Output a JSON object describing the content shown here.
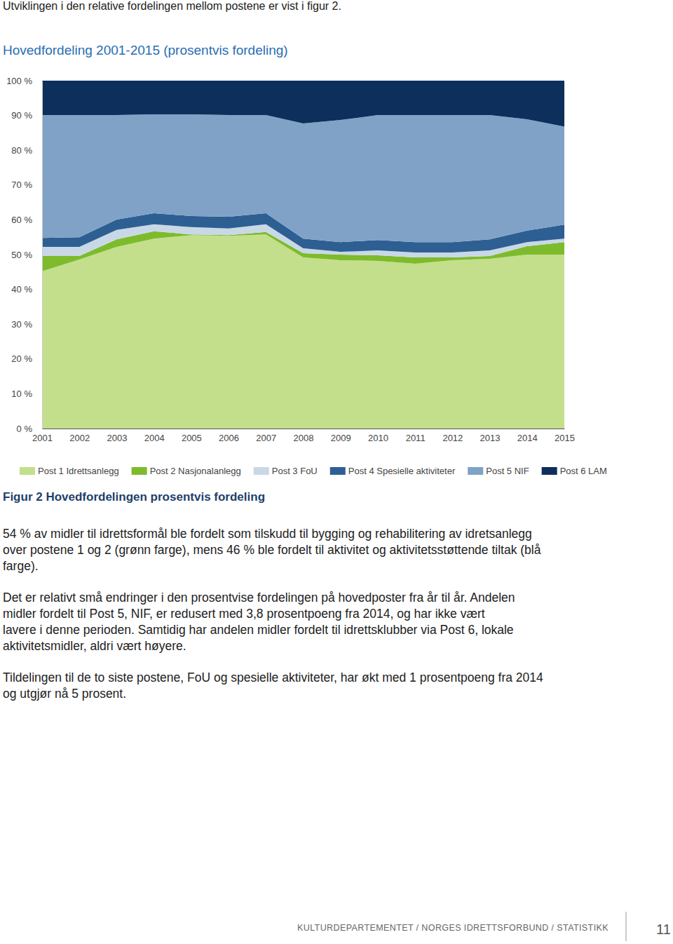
{
  "header_text": "Utviklingen i den relative fordelingen mellom postene er vist i figur 2.",
  "chart_data": {
    "type": "area",
    "stacked": true,
    "title": "Hovedfordeling 2001-2015 (prosentvis fordeling)",
    "categories": [
      "2001",
      "2002",
      "2003",
      "2004",
      "2005",
      "2006",
      "2007",
      "2008",
      "2009",
      "2010",
      "2011",
      "2012",
      "2013",
      "2014",
      "2015"
    ],
    "series": [
      {
        "name": "Post 1 Idrettsanlegg",
        "color": "#c3df8c",
        "values": [
          45.2,
          48.6,
          52.2,
          54.6,
          55.6,
          55.4,
          55.8,
          49.2,
          48.4,
          48.2,
          47.4,
          48.4,
          48.8,
          50.0,
          50.0
        ]
      },
      {
        "name": "Post 2 Nasjonalanlegg",
        "color": "#7dbb2c",
        "values": [
          4.4,
          1.0,
          2.2,
          2.1,
          0.2,
          0.2,
          0.7,
          1.2,
          1.6,
          1.6,
          1.8,
          0.8,
          0.8,
          2.4,
          3.6
        ]
      },
      {
        "name": "Post 3 FoU",
        "color": "#c9d8e6",
        "values": [
          2.6,
          2.6,
          2.7,
          2.0,
          2.1,
          1.9,
          2.2,
          1.4,
          0.8,
          1.4,
          1.4,
          1.4,
          1.6,
          1.2,
          1.0
        ]
      },
      {
        "name": "Post 4 Spesielle aktiviteter",
        "color": "#2e5f93",
        "values": [
          2.6,
          2.8,
          3.0,
          3.2,
          3.2,
          3.4,
          3.2,
          2.8,
          2.8,
          3.0,
          3.0,
          3.0,
          3.2,
          3.3,
          4.0
        ]
      },
      {
        "name": "Post 5 NIF",
        "color": "#7fa2c6",
        "values": [
          35.3,
          35.1,
          30.0,
          28.4,
          29.2,
          29.2,
          28.2,
          33.1,
          35.1,
          35.9,
          36.5,
          36.5,
          35.7,
          32.0,
          28.2
        ]
      },
      {
        "name": "Post 6 LAM",
        "color": "#0c2f5c",
        "values": [
          9.9,
          9.9,
          9.9,
          9.7,
          9.7,
          9.9,
          9.9,
          12.3,
          11.3,
          9.9,
          9.9,
          9.9,
          9.9,
          11.1,
          13.2
        ]
      }
    ],
    "ylim": [
      0,
      100
    ],
    "yticks": [
      {
        "value": 0,
        "label": "0 %"
      },
      {
        "value": 10,
        "label": "10 %"
      },
      {
        "value": 20,
        "label": "20 %"
      },
      {
        "value": 30,
        "label": "30 %"
      },
      {
        "value": 40,
        "label": "40 %"
      },
      {
        "value": 50,
        "label": "50 %"
      },
      {
        "value": 60,
        "label": "60 %"
      },
      {
        "value": 70,
        "label": "70 %"
      },
      {
        "value": 80,
        "label": "80 %"
      },
      {
        "value": 90,
        "label": "90 %"
      },
      {
        "value": 100,
        "label": "100 %"
      }
    ],
    "grid": false,
    "legend": "bottom"
  },
  "caption": "Figur 2 Hovedfordelingen prosentvis fordeling",
  "paragraphs": [
    [
      "54 % av midler til idrettsformål ble fordelt som tilskudd til bygging og rehabilitering av idretsanlegg",
      "over postene 1 og 2 (grønn farge), mens 46 % ble fordelt til aktivitet og aktivitetsstøttende tiltak (blå",
      "farge)."
    ],
    [
      "Det er relativt små endringer i den prosentvise fordelingen på hovedposter fra år til år. Andelen",
      "midler fordelt til Post 5, NIF, er redusert med 3,8 prosentpoeng fra 2014, og har ikke vært",
      "lavere i denne perioden. Samtidig har andelen midler fordelt til idrettsklubber via Post 6, lokale",
      "aktivitetsmidler, aldri vært høyere."
    ],
    [
      "Tildelingen til de to siste postene, FoU og spesielle aktiviteter, har økt med 1 prosentpoeng fra 2014",
      "og utgjør nå 5 prosent."
    ]
  ],
  "footer": {
    "text": "KULTURDEPARTEMENTET / NORGES IDRETTSFORBUND / STATISTIKK",
    "page": "11"
  }
}
